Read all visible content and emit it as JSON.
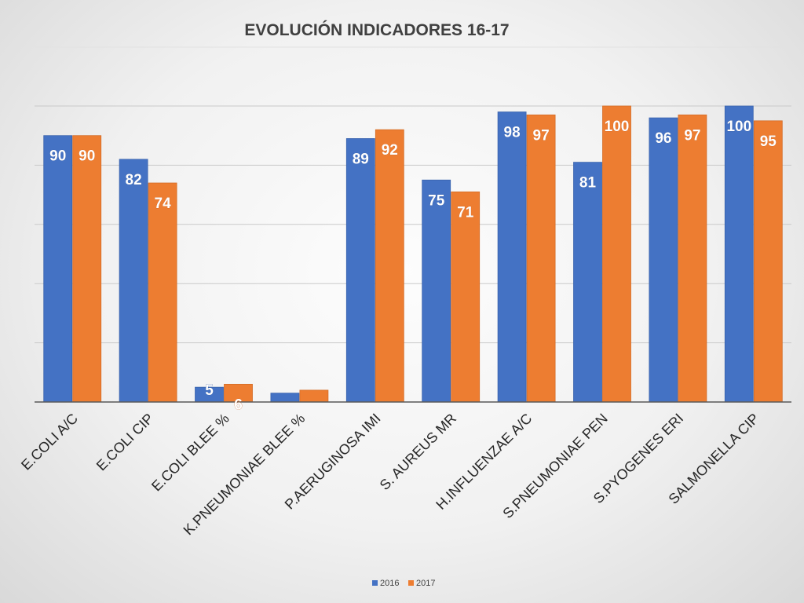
{
  "chart_data": {
    "type": "bar",
    "title": "EVOLUCIÓN INDICADORES 16-17",
    "categories": [
      "E.COLI A/C",
      "E.COLI CIP",
      "E.COLI BLEE %",
      "K.PNEUMONIAE BLEE %",
      "P.AERUGINOSA IMI",
      "S. AUREUS  MR",
      "H.INFLUENZAE  A/C",
      "S.PNEUMONIAE PEN",
      "S.PYOGENES  ERI",
      "SALMONELLA CIP"
    ],
    "series": [
      {
        "name": "2016",
        "color": "#4472C4",
        "values": [
          90,
          82,
          5,
          3,
          89,
          75,
          98,
          81,
          96,
          100
        ],
        "labels": [
          "90",
          "82",
          "5",
          "",
          "89",
          "75",
          "98",
          "81",
          "96",
          "100"
        ]
      },
      {
        "name": "2017",
        "color": "#ED7D31",
        "values": [
          90,
          74,
          6,
          4,
          92,
          71,
          97,
          100,
          97,
          95
        ],
        "labels": [
          "90",
          "74",
          "6",
          "",
          "92",
          "71",
          "97",
          "100",
          "97",
          "95"
        ]
      }
    ],
    "ylim": [
      0,
      100
    ],
    "y_tick_step": 20,
    "grid": true,
    "legend_position": "bottom",
    "xlabel": "",
    "ylabel": ""
  }
}
